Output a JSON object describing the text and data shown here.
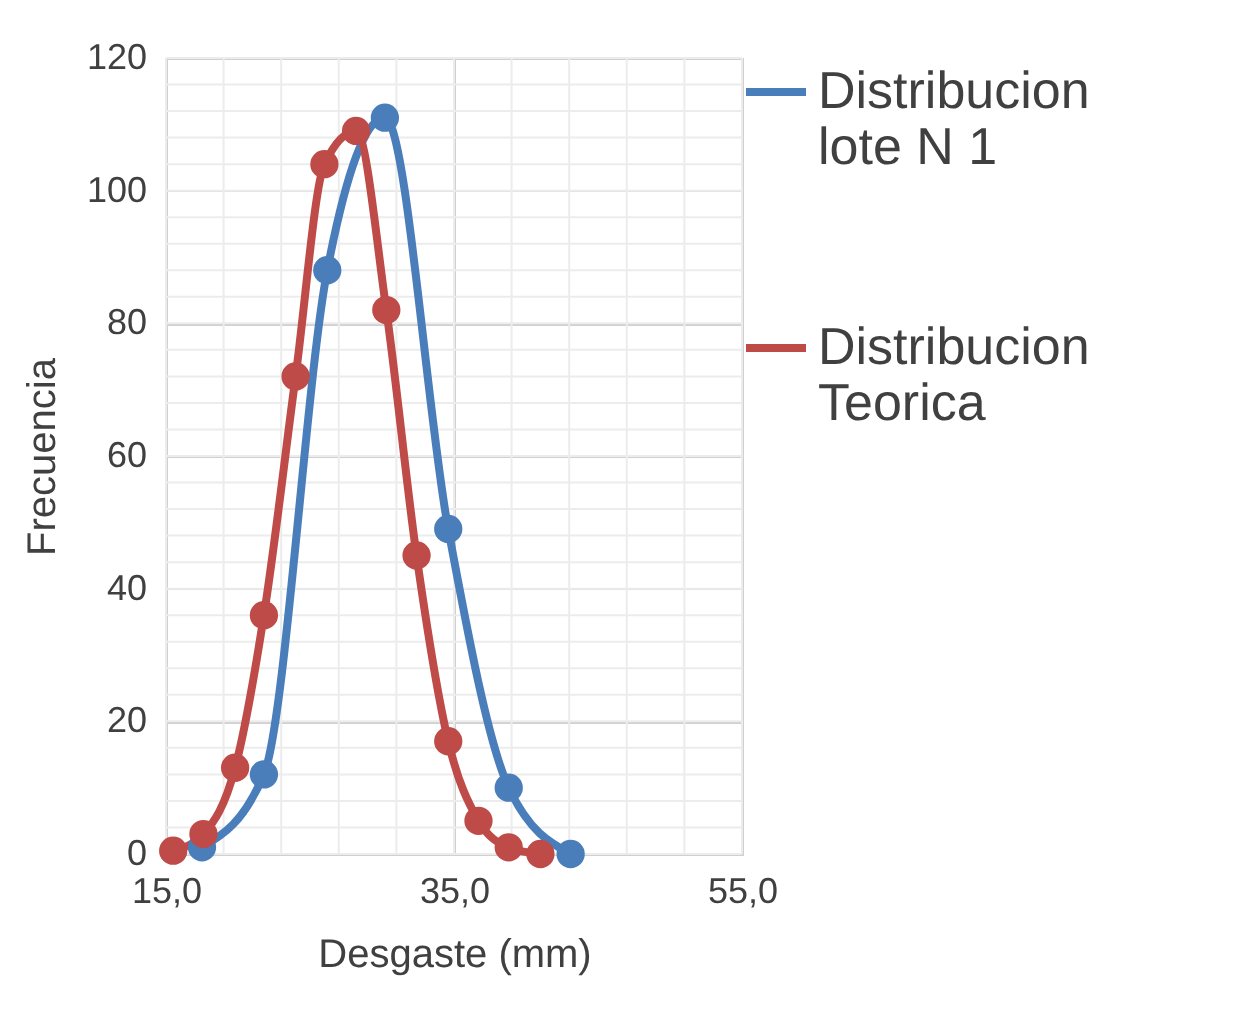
{
  "chart_data": {
    "type": "line",
    "xlabel": "Desgaste (mm)",
    "ylabel": "Frecuencia",
    "xlim": [
      15,
      55
    ],
    "xticks": [
      {
        "value": 15,
        "label": "15,0"
      },
      {
        "value": 35,
        "label": "35,0"
      },
      {
        "value": 55,
        "label": "55,0"
      }
    ],
    "ylim": [
      0,
      120
    ],
    "yticks": [
      0,
      20,
      40,
      60,
      80,
      100,
      120
    ],
    "grid": true,
    "legend": "right",
    "marker": "circle",
    "line_style": "solid",
    "series": [
      {
        "name": "Distribucion lote N 1",
        "color": "#4a7ebb",
        "x": [
          17.5,
          21.8,
          26.2,
          30.2,
          34.6,
          38.8,
          43.1
        ],
        "values": [
          1,
          12,
          88,
          111,
          49,
          10,
          0
        ]
      },
      {
        "name": "Distribucion Teorica",
        "color": "#be4b48",
        "x": [
          15.5,
          17.6,
          19.8,
          21.8,
          24.0,
          26.0,
          28.2,
          30.3,
          32.4,
          34.6,
          36.7,
          38.8,
          41.0
        ],
        "values": [
          0.5,
          3,
          13,
          36,
          72,
          104,
          109,
          82,
          45,
          17,
          5,
          1,
          0
        ]
      }
    ]
  }
}
